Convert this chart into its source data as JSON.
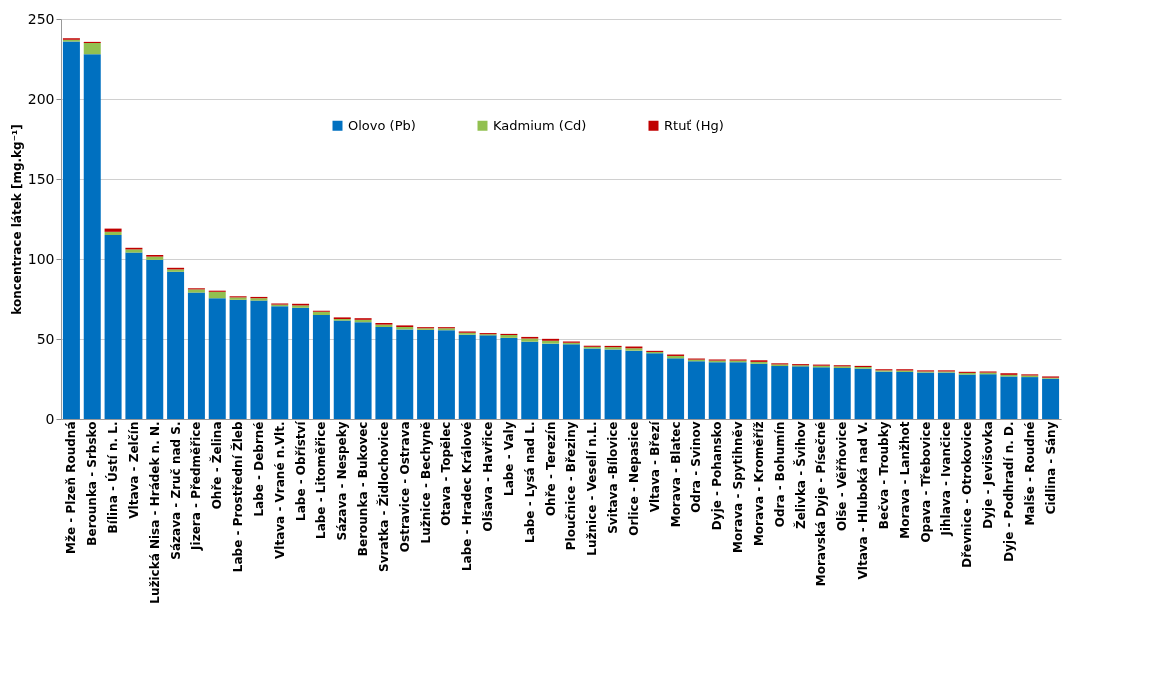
{
  "chart_data": {
    "type": "bar",
    "stacked": true,
    "ylabel": "koncentrace  látek [mg.kg⁻¹]",
    "categories": [
      "Mže - Plzeň Roudná",
      "Berounka - Srbsko",
      "Bílina - Ústí n. L.",
      "Vltava - Zelčín",
      "Lužická Nisa - Hrádek n. N.",
      "Sázava - Zruč nad S.",
      "Jizera - Předměřice",
      "Ohře - Želina",
      "Labe - Prostřední Žleb",
      "Labe - Debrné",
      "Vltava - Vrané n.Vlt.",
      "Labe - Obříství",
      "Labe - Litoměřice",
      "Sázava - Nespeky",
      "Berounka - Bukovec",
      "Svratka - Židlochovice",
      "Ostravice - Ostrava",
      "Lužnice - Bechyně",
      "Otava - Topělec",
      "Labe - Hradec Králové",
      "Olšava - Havřice",
      "Labe - Valy",
      "Labe - Lysá nad L.",
      "Ohře - Terezín",
      "Ploučnice - Březiny",
      "Lužnice - Veselí n.L.",
      "Svitava -Bílovice",
      "Orlice - Nepasice",
      "Vltava - Březí",
      "Morava - Blatec",
      "Odra - Svinov",
      "Dyje - Pohansko",
      "Morava - Spytihněv",
      "Morava - Kroměříž",
      "Odra - Bohumín",
      "Želivka - Švihov",
      "Moravská  Dyje - Písečné",
      "Olše - Věřňovice",
      "Vltava - Hluboká nad V.",
      "Bečva - Troubky",
      "Morava - Lanžhot",
      "Opava - Třebovice",
      "Jihlava - Ivančice",
      "Dřevnice - Otrokovice",
      "Dyje - Jevišovka",
      "Dyje - Podhradí n. D.",
      "Malše - Roudné",
      "Cidlina - Sány"
    ],
    "series": [
      {
        "name": "Olovo (Pb)",
        "color": "#0070c0",
        "values": [
          236,
          228,
          115,
          104,
          99.5,
          92,
          79,
          75.5,
          74.5,
          74,
          70.5,
          69.5,
          65,
          61.5,
          60.5,
          57.5,
          56,
          55.7,
          55.5,
          52.7,
          52.3,
          50.7,
          48.3,
          47.1,
          46.7,
          44.1,
          43.5,
          42.7,
          41.1,
          37.9,
          36.1,
          35.5,
          35.5,
          34.5,
          33.1,
          32.9,
          32.3,
          31.9,
          31.5,
          29.6,
          29.4,
          29,
          29,
          27.8,
          28,
          26.6,
          26.2,
          25.2
        ]
      },
      {
        "name": "Kadmium (Cd)",
        "color": "#92c050",
        "values": [
          1,
          7,
          2,
          2,
          2,
          1.5,
          2,
          4,
          1.5,
          1.5,
          1,
          1.5,
          2,
          1,
          1.5,
          1.5,
          1.5,
          1,
          1.2,
          1.2,
          0.7,
          1.8,
          2,
          1.8,
          1,
          1,
          1.4,
          1.5,
          0.8,
          1.5,
          1,
          1,
          1,
          1.2,
          1,
          0.7,
          1,
          1,
          1,
          0.8,
          0.9,
          0.7,
          0.7,
          1,
          1,
          1,
          1,
          0.6
        ]
      },
      {
        "name": "Rtuť (Hg)",
        "color": "#c00000",
        "values": [
          1,
          0.7,
          2,
          1,
          1,
          1,
          0.7,
          0.7,
          0.7,
          0.8,
          0.7,
          1,
          0.7,
          1,
          1,
          1,
          1,
          0.7,
          0.7,
          0.8,
          0.7,
          0.7,
          1,
          1.2,
          0.7,
          0.7,
          0.8,
          1.1,
          0.7,
          0.9,
          0.7,
          0.7,
          0.7,
          1,
          0.7,
          0.7,
          0.7,
          0.7,
          0.7,
          0.7,
          0.8,
          0.7,
          0.7,
          0.7,
          0.7,
          1,
          0.7,
          0.8
        ]
      }
    ],
    "ylim": [
      0,
      250
    ],
    "yticks": [
      0,
      50,
      100,
      150,
      200,
      250
    ],
    "grid": "y",
    "legend": "top"
  }
}
